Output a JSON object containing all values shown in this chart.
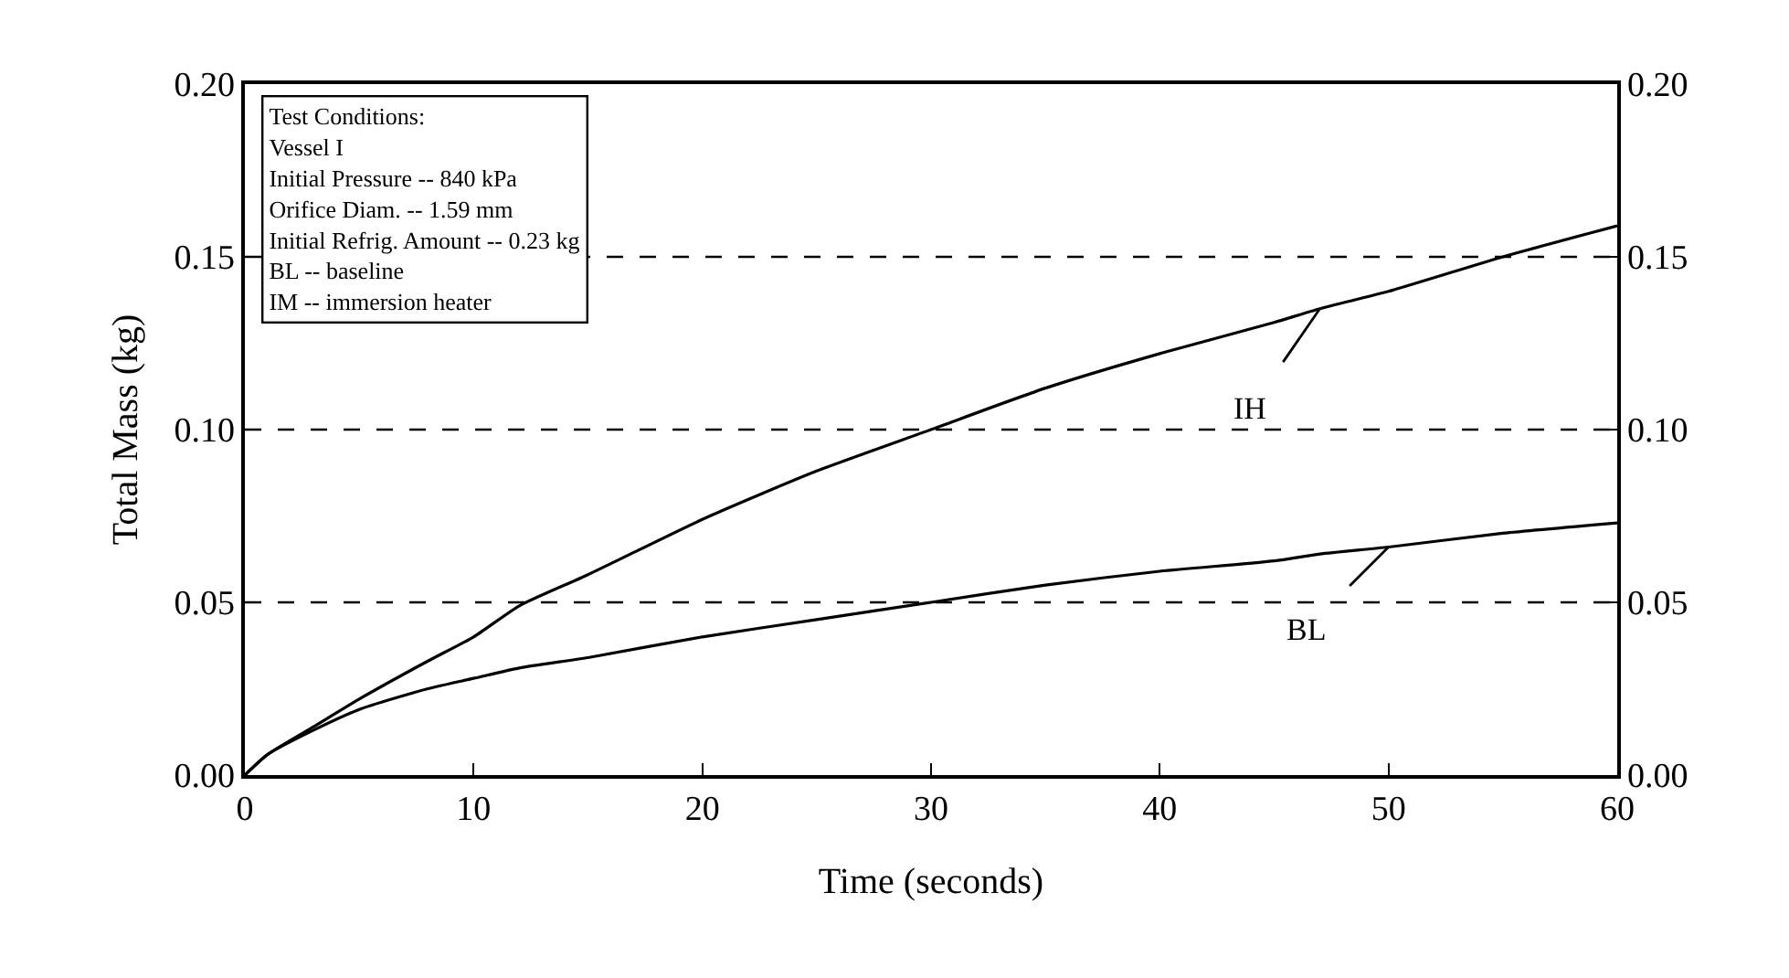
{
  "chart_data": {
    "type": "line",
    "xlabel": "Time (seconds)",
    "ylabel": "Total Mass (kg)",
    "xlim": [
      0,
      60
    ],
    "xticks": [
      0,
      10,
      20,
      30,
      40,
      50,
      60
    ],
    "ylim": [
      0,
      0.2
    ],
    "yticks": [
      {
        "value": 0,
        "label": "0.00"
      },
      {
        "value": 0.05,
        "label": "0.05"
      },
      {
        "value": 0.1,
        "label": "0.10"
      },
      {
        "value": 0.15,
        "label": "0.15"
      },
      {
        "value": 0.2,
        "label": "0.20"
      }
    ],
    "y2lim": [
      0,
      0.2
    ],
    "y2ticks": [
      {
        "value": 0,
        "label": "0.00"
      },
      {
        "value": 0.05,
        "label": "0.05"
      },
      {
        "value": 0.1,
        "label": "0.10"
      },
      {
        "value": 0.15,
        "label": "0.15"
      },
      {
        "value": 0.2,
        "label": "0.20"
      }
    ],
    "grid": "y",
    "line_style": "solid",
    "x": [
      0,
      1,
      3,
      5,
      8,
      10,
      12,
      15,
      20,
      25,
      30,
      35,
      40,
      45,
      47,
      50,
      55,
      60
    ],
    "series": [
      {
        "name": "IH",
        "color": "#000000",
        "values": [
          0,
          0.006,
          0.014,
          0.022,
          0.033,
          0.04,
          0.049,
          0.058,
          0.074,
          0.088,
          0.1,
          0.112,
          0.122,
          0.131,
          0.135,
          0.14,
          0.15,
          0.159
        ]
      },
      {
        "name": "BL",
        "color": "#000000",
        "values": [
          0,
          0.006,
          0.013,
          0.019,
          0.025,
          0.028,
          0.031,
          0.034,
          0.04,
          0.045,
          0.05,
          0.055,
          0.059,
          0.062,
          0.064,
          0.066,
          0.07,
          0.073
        ]
      }
    ],
    "annotations": [
      "Test Conditions:",
      "Vessel I",
      "Initial Pressure -- 840 kPa",
      "Orifice Diam. -- 1.59 mm",
      "Initial Refrig. Amount -- 0.23 kg",
      "BL -- baseline",
      "IM -- immersion heater"
    ]
  }
}
